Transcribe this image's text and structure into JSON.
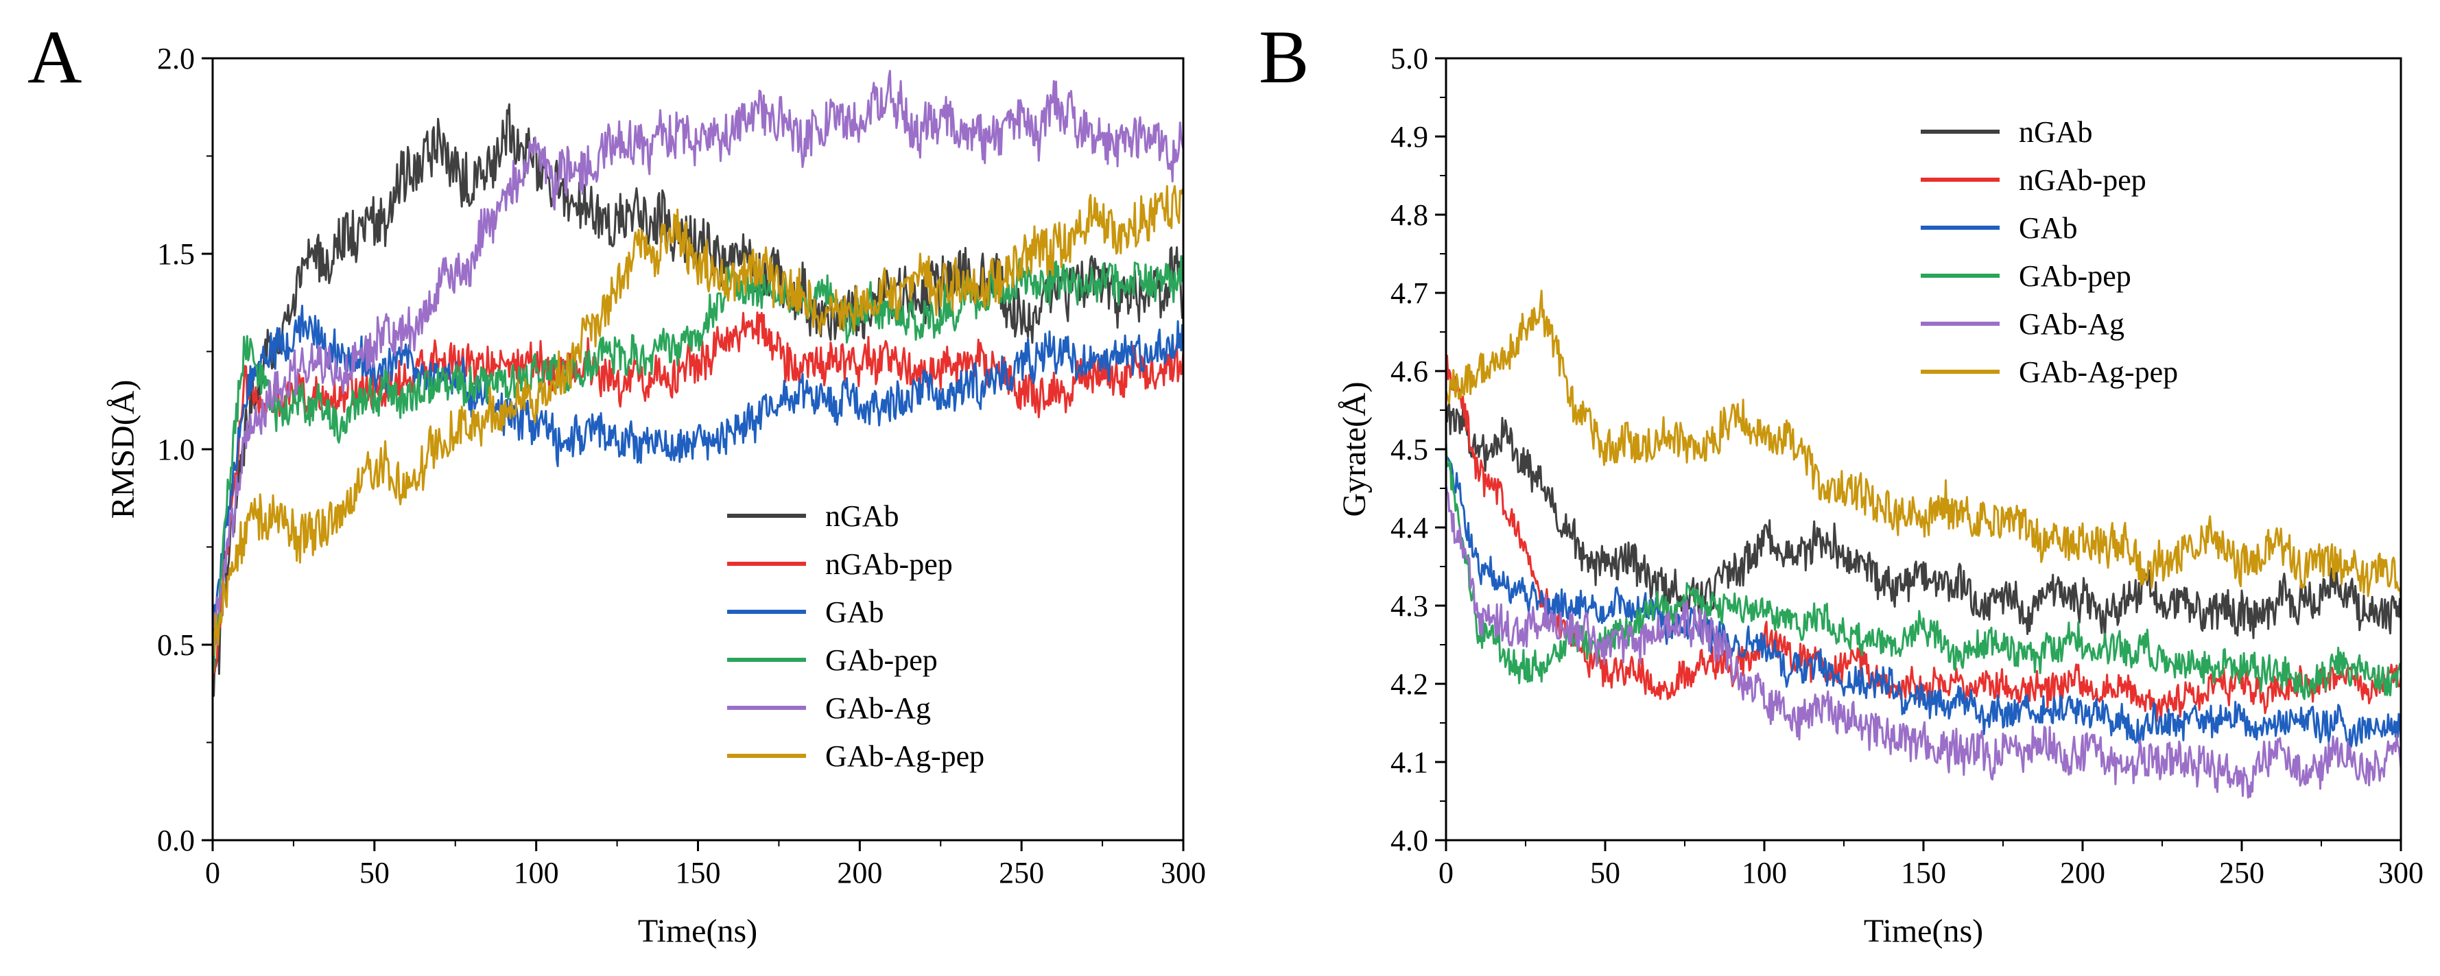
{
  "chart_data": [
    {
      "panel": "A",
      "type": "line",
      "title": "",
      "xlabel": "Time(ns)",
      "ylabel": "RMSD(Å)",
      "xlim": [
        0,
        300
      ],
      "ylim": [
        0.0,
        2.0
      ],
      "xticks": [
        "0",
        "50",
        "100",
        "150",
        "200",
        "250",
        "300"
      ],
      "yticks": [
        "0.0",
        "0.5",
        "1.0",
        "1.5",
        "2.0"
      ],
      "legend_position": "bottom-right",
      "x": [
        0,
        10,
        20,
        30,
        40,
        50,
        60,
        70,
        80,
        90,
        100,
        110,
        120,
        130,
        140,
        150,
        160,
        170,
        180,
        190,
        200,
        210,
        220,
        230,
        240,
        250,
        260,
        270,
        280,
        290,
        300
      ],
      "series": [
        {
          "name": "nGAb",
          "color": "#404040",
          "noise": 0.07,
          "values": [
            0.35,
            1.05,
            1.3,
            1.45,
            1.55,
            1.55,
            1.72,
            1.75,
            1.72,
            1.8,
            1.72,
            1.62,
            1.62,
            1.58,
            1.58,
            1.52,
            1.48,
            1.45,
            1.4,
            1.35,
            1.35,
            1.4,
            1.38,
            1.45,
            1.38,
            1.35,
            1.4,
            1.42,
            1.38,
            1.4,
            1.42
          ]
        },
        {
          "name": "nGAb-pep",
          "color": "#e8312e",
          "noise": 0.05,
          "values": [
            0.4,
            1.15,
            1.1,
            1.12,
            1.15,
            1.15,
            1.18,
            1.22,
            1.2,
            1.22,
            1.2,
            1.22,
            1.2,
            1.18,
            1.2,
            1.22,
            1.28,
            1.32,
            1.22,
            1.22,
            1.22,
            1.22,
            1.2,
            1.2,
            1.2,
            1.15,
            1.15,
            1.18,
            1.2,
            1.2,
            1.2
          ]
        },
        {
          "name": "GAb",
          "color": "#1f5fbf",
          "noise": 0.05,
          "values": [
            0.5,
            1.15,
            1.25,
            1.32,
            1.25,
            1.2,
            1.22,
            1.2,
            1.15,
            1.1,
            1.05,
            1.02,
            1.05,
            1.0,
            1.0,
            1.0,
            1.05,
            1.1,
            1.12,
            1.12,
            1.12,
            1.12,
            1.15,
            1.15,
            1.18,
            1.2,
            1.25,
            1.25,
            1.25,
            1.25,
            1.28
          ]
        },
        {
          "name": "GAb-pep",
          "color": "#2aa55a",
          "noise": 0.05,
          "values": [
            0.45,
            1.3,
            1.1,
            1.1,
            1.08,
            1.12,
            1.15,
            1.18,
            1.15,
            1.2,
            1.18,
            1.2,
            1.22,
            1.25,
            1.25,
            1.3,
            1.42,
            1.45,
            1.35,
            1.38,
            1.35,
            1.35,
            1.35,
            1.38,
            1.4,
            1.42,
            1.45,
            1.42,
            1.45,
            1.45,
            1.45
          ]
        },
        {
          "name": "GAb-Ag",
          "color": "#9b6fc8",
          "noise": 0.06,
          "values": [
            0.5,
            1.0,
            1.15,
            1.2,
            1.2,
            1.25,
            1.3,
            1.4,
            1.5,
            1.62,
            1.75,
            1.72,
            1.78,
            1.78,
            1.8,
            1.8,
            1.82,
            1.85,
            1.82,
            1.85,
            1.85,
            1.88,
            1.82,
            1.8,
            1.82,
            1.85,
            1.85,
            1.82,
            1.8,
            1.78,
            1.75
          ]
        },
        {
          "name": "GAb-Ag-pep",
          "color": "#c9960d",
          "noise": 0.06,
          "values": [
            0.5,
            0.8,
            0.82,
            0.78,
            0.85,
            0.95,
            0.92,
            1.0,
            1.05,
            1.12,
            1.15,
            1.2,
            1.35,
            1.48,
            1.55,
            1.48,
            1.42,
            1.45,
            1.4,
            1.35,
            1.35,
            1.4,
            1.42,
            1.45,
            1.42,
            1.5,
            1.52,
            1.58,
            1.55,
            1.6,
            1.62
          ]
        }
      ]
    },
    {
      "panel": "B",
      "type": "line",
      "title": "",
      "xlabel": "Time(ns)",
      "ylabel": "Gyrate(Å)",
      "xlim": [
        0,
        300
      ],
      "ylim": [
        4.0,
        5.0
      ],
      "xticks": [
        "0",
        "50",
        "100",
        "150",
        "200",
        "250",
        "300"
      ],
      "yticks": [
        "4.0",
        "4.1",
        "4.2",
        "4.3",
        "4.4",
        "4.5",
        "4.6",
        "4.7",
        "4.8",
        "4.9",
        "5.0"
      ],
      "legend_position": "top-center",
      "x": [
        0,
        10,
        20,
        30,
        40,
        50,
        60,
        70,
        80,
        90,
        100,
        110,
        120,
        130,
        140,
        150,
        160,
        170,
        180,
        190,
        200,
        210,
        220,
        230,
        240,
        250,
        260,
        270,
        280,
        290,
        300
      ],
      "series": [
        {
          "name": "nGAb",
          "color": "#404040",
          "noise": 0.025,
          "values": [
            4.55,
            4.5,
            4.52,
            4.45,
            4.38,
            4.35,
            4.35,
            4.32,
            4.32,
            4.35,
            4.38,
            4.38,
            4.38,
            4.35,
            4.32,
            4.35,
            4.32,
            4.32,
            4.3,
            4.32,
            4.3,
            4.3,
            4.32,
            4.3,
            4.3,
            4.3,
            4.3,
            4.3,
            4.32,
            4.3,
            4.3
          ]
        },
        {
          "name": "nGAb-pep",
          "color": "#e8312e",
          "noise": 0.02,
          "values": [
            4.62,
            4.48,
            4.42,
            4.32,
            4.25,
            4.22,
            4.22,
            4.2,
            4.22,
            4.22,
            4.25,
            4.23,
            4.22,
            4.22,
            4.2,
            4.2,
            4.2,
            4.2,
            4.2,
            4.2,
            4.2,
            4.2,
            4.18,
            4.18,
            4.2,
            4.2,
            4.18,
            4.2,
            4.2,
            4.2,
            4.2
          ]
        },
        {
          "name": "GAb",
          "color": "#1f5fbf",
          "noise": 0.02,
          "values": [
            4.5,
            4.35,
            4.32,
            4.3,
            4.3,
            4.3,
            4.3,
            4.28,
            4.28,
            4.25,
            4.25,
            4.22,
            4.22,
            4.2,
            4.2,
            4.18,
            4.18,
            4.16,
            4.16,
            4.16,
            4.16,
            4.16,
            4.15,
            4.15,
            4.15,
            4.15,
            4.15,
            4.15,
            4.15,
            4.14,
            4.14
          ]
        },
        {
          "name": "GAb-pep",
          "color": "#2aa55a",
          "noise": 0.02,
          "values": [
            4.5,
            4.28,
            4.22,
            4.22,
            4.25,
            4.25,
            4.28,
            4.3,
            4.3,
            4.3,
            4.3,
            4.28,
            4.28,
            4.26,
            4.26,
            4.26,
            4.25,
            4.25,
            4.24,
            4.24,
            4.25,
            4.24,
            4.25,
            4.22,
            4.22,
            4.22,
            4.22,
            4.2,
            4.22,
            4.22,
            4.2
          ]
        },
        {
          "name": "GAb-Ag",
          "color": "#9b6fc8",
          "noise": 0.025,
          "values": [
            4.45,
            4.3,
            4.28,
            4.28,
            4.28,
            4.25,
            4.25,
            4.28,
            4.28,
            4.22,
            4.18,
            4.15,
            4.16,
            4.15,
            4.14,
            4.12,
            4.12,
            4.1,
            4.12,
            4.12,
            4.12,
            4.1,
            4.1,
            4.1,
            4.1,
            4.08,
            4.1,
            4.08,
            4.1,
            4.1,
            4.1
          ]
        },
        {
          "name": "GAb-Ag-pep",
          "color": "#c9960d",
          "noise": 0.025,
          "values": [
            4.58,
            4.6,
            4.62,
            4.68,
            4.55,
            4.5,
            4.5,
            4.52,
            4.5,
            4.55,
            4.52,
            4.5,
            4.45,
            4.45,
            4.42,
            4.42,
            4.42,
            4.4,
            4.4,
            4.38,
            4.38,
            4.38,
            4.36,
            4.36,
            4.38,
            4.36,
            4.38,
            4.35,
            4.36,
            4.34,
            4.33
          ]
        }
      ]
    }
  ]
}
